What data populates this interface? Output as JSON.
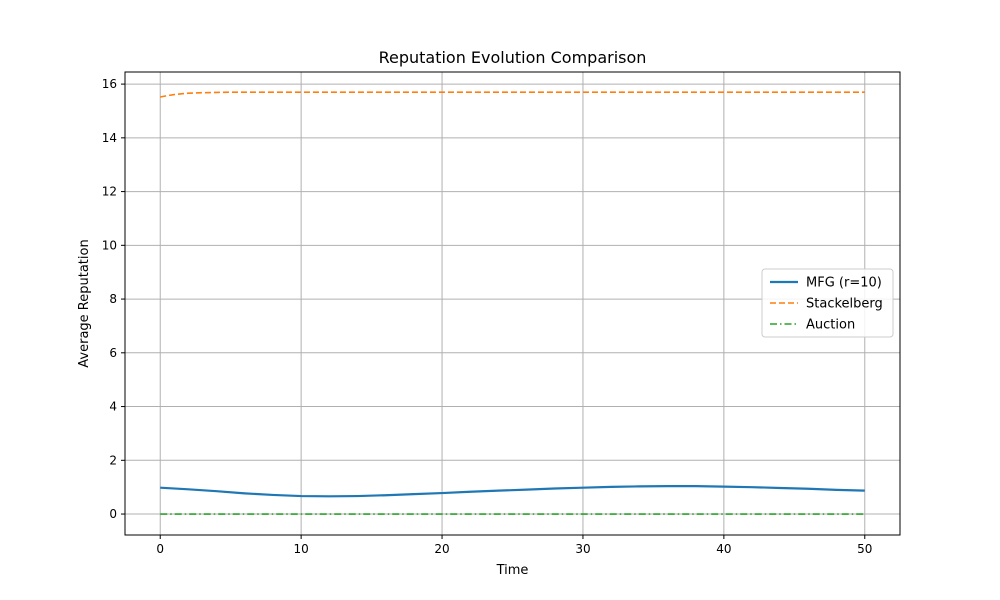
{
  "chart_data": {
    "type": "line",
    "title": "Reputation Evolution Comparison",
    "xlabel": "Time",
    "ylabel": "Average Reputation",
    "xlim": [
      -2.5,
      52.5
    ],
    "ylim": [
      -0.78,
      16.45
    ],
    "xticks": [
      0,
      10,
      20,
      30,
      40,
      50
    ],
    "yticks": [
      0,
      2,
      4,
      6,
      8,
      10,
      12,
      14,
      16
    ],
    "grid": true,
    "legend_position": "center-right",
    "series": [
      {
        "name": "MFG (r=10)",
        "color": "#1f77b4",
        "style": "solid",
        "x": [
          0,
          2,
          4,
          6,
          8,
          10,
          12,
          14,
          16,
          18,
          20,
          22,
          24,
          26,
          28,
          30,
          32,
          34,
          36,
          38,
          40,
          42,
          44,
          46,
          48,
          50
        ],
        "y": [
          0.98,
          0.92,
          0.85,
          0.77,
          0.71,
          0.67,
          0.66,
          0.67,
          0.7,
          0.74,
          0.78,
          0.83,
          0.87,
          0.91,
          0.95,
          0.98,
          1.01,
          1.03,
          1.04,
          1.04,
          1.02,
          1.0,
          0.97,
          0.94,
          0.9,
          0.87
        ]
      },
      {
        "name": "Stackelberg",
        "color": "#ff7f0e",
        "style": "dashed",
        "x": [
          0,
          0.5,
          1,
          1.5,
          2,
          3,
          4,
          5,
          6,
          8,
          10,
          20,
          30,
          40,
          50
        ],
        "y": [
          15.52,
          15.57,
          15.61,
          15.64,
          15.66,
          15.68,
          15.69,
          15.7,
          15.7,
          15.7,
          15.7,
          15.7,
          15.7,
          15.7,
          15.7
        ]
      },
      {
        "name": "Auction",
        "color": "#2ca02c",
        "style": "dashdot",
        "x": [
          0,
          10,
          20,
          30,
          40,
          50
        ],
        "y": [
          0,
          0,
          0,
          0,
          0,
          0
        ]
      }
    ]
  }
}
